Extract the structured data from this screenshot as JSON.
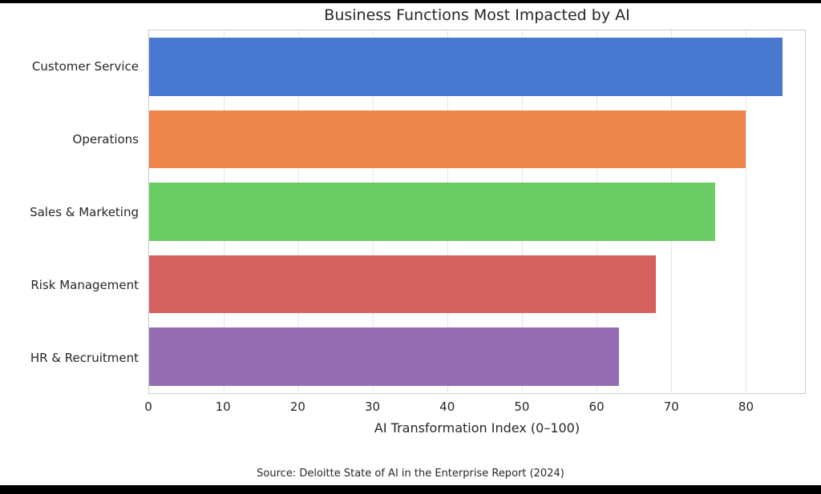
{
  "page": {
    "title": "Business Functions Most Impacted by AI",
    "source_note": "Source: Deloitte State of AI in the Enterprise Report (2024)"
  },
  "chart_data": {
    "type": "bar",
    "orientation": "horizontal",
    "title": "Business Functions Most Impacted by AI",
    "categories": [
      "Customer Service",
      "Operations",
      "Sales & Marketing",
      "Risk Management",
      "HR & Recruitment"
    ],
    "values": [
      85,
      80,
      76,
      68,
      63
    ],
    "bar_colors": [
      "#4878D0",
      "#EE854A",
      "#6ACC64",
      "#D65F5F",
      "#956CB4"
    ],
    "xlabel": "AI Transformation Index (0–100)",
    "ylabel": "",
    "xlim": [
      0,
      88
    ],
    "xticks": [
      0,
      10,
      20,
      30,
      40,
      50,
      60,
      70,
      80
    ],
    "grid": true,
    "gridline_color": "#e5e5e5",
    "legend": false,
    "annotation": "Source: Deloitte State of AI in the Enterprise Report (2024)"
  }
}
